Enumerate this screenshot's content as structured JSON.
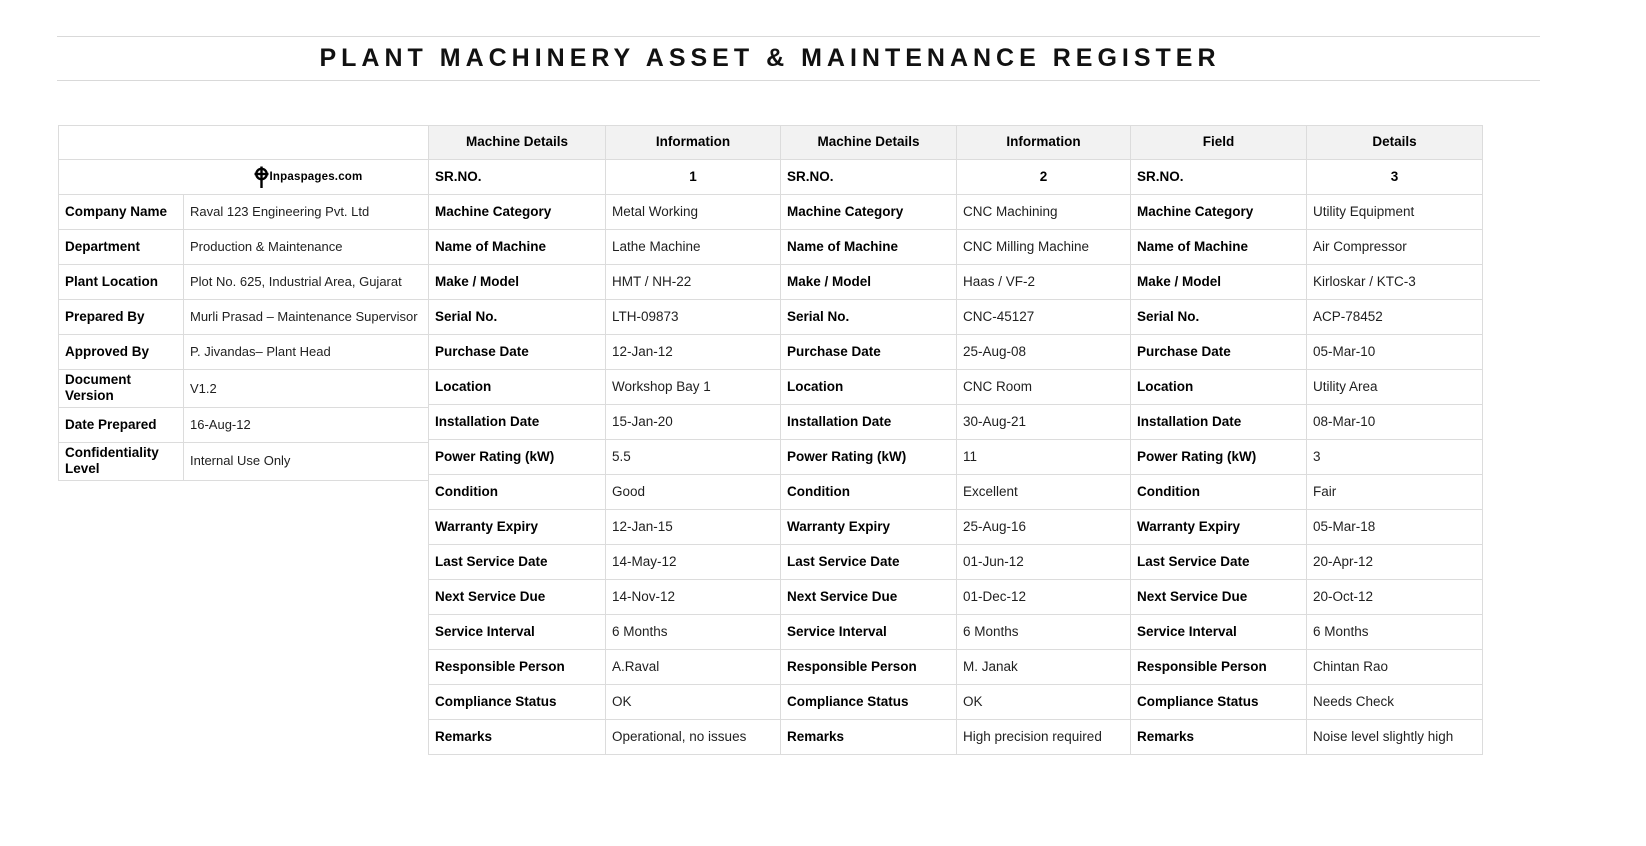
{
  "title": "PLANT MACHINERY ASSET & MAINTENANCE REGISTER",
  "logo": {
    "icon": "inpaspages-crosshair-icon",
    "text": "Inpaspages.com"
  },
  "colors": {
    "header_bg": "#f2f2f2",
    "grid_line": "#dcdcdc",
    "text": "#1f1f1f"
  },
  "meta": {
    "rows": [
      {
        "label": "Company Name",
        "value": "Raval 123 Engineering Pvt. Ltd"
      },
      {
        "label": "Department",
        "value": "Production & Maintenance"
      },
      {
        "label": "Plant Location",
        "value": "Plot No. 625, Industrial Area, Gujarat"
      },
      {
        "label": "Prepared By",
        "value": "Murli Prasad – Maintenance Supervisor"
      },
      {
        "label": "Approved By",
        "value": "P. Jivandas– Plant Head"
      },
      {
        "label": "Document Version",
        "value": "V1.2"
      },
      {
        "label": "Date Prepared",
        "value": "16-Aug-12"
      },
      {
        "label": "Confidentiality Level",
        "value": "Internal Use Only"
      }
    ]
  },
  "machines": [
    {
      "header": {
        "col1": "Machine Details",
        "col2": "Information"
      },
      "rows": [
        {
          "label": "SR.NO.",
          "value": "1"
        },
        {
          "label": "Machine Category",
          "value": "Metal Working"
        },
        {
          "label": "Name of Machine",
          "value": "Lathe Machine"
        },
        {
          "label": "Make / Model",
          "value": "HMT / NH-22"
        },
        {
          "label": "Serial No.",
          "value": "LTH-09873"
        },
        {
          "label": "Purchase Date",
          "value": "12-Jan-12"
        },
        {
          "label": "Location",
          "value": "Workshop Bay 1"
        },
        {
          "label": "Installation Date",
          "value": "15-Jan-20"
        },
        {
          "label": "Power Rating (kW)",
          "value": "5.5"
        },
        {
          "label": "Condition",
          "value": "Good"
        },
        {
          "label": "Warranty Expiry",
          "value": "12-Jan-15"
        },
        {
          "label": "Last Service Date",
          "value": "14-May-12"
        },
        {
          "label": "Next Service Due",
          "value": "14-Nov-12"
        },
        {
          "label": "Service Interval",
          "value": "6 Months"
        },
        {
          "label": "Responsible Person",
          "value": "A.Raval"
        },
        {
          "label": "Compliance Status",
          "value": "OK"
        },
        {
          "label": "Remarks",
          "value": "Operational, no issues"
        }
      ]
    },
    {
      "header": {
        "col1": "Machine Details",
        "col2": "Information"
      },
      "rows": [
        {
          "label": "SR.NO.",
          "value": "2"
        },
        {
          "label": "Machine Category",
          "value": "CNC Machining"
        },
        {
          "label": "Name of Machine",
          "value": "CNC Milling Machine"
        },
        {
          "label": "Make / Model",
          "value": "Haas / VF-2"
        },
        {
          "label": "Serial No.",
          "value": "CNC-45127"
        },
        {
          "label": "Purchase Date",
          "value": "25-Aug-08"
        },
        {
          "label": "Location",
          "value": "CNC Room"
        },
        {
          "label": "Installation Date",
          "value": "30-Aug-21"
        },
        {
          "label": "Power Rating (kW)",
          "value": "11"
        },
        {
          "label": "Condition",
          "value": "Excellent"
        },
        {
          "label": "Warranty Expiry",
          "value": "25-Aug-16"
        },
        {
          "label": "Last Service Date",
          "value": "01-Jun-12"
        },
        {
          "label": "Next Service Due",
          "value": "01-Dec-12"
        },
        {
          "label": "Service Interval",
          "value": "6 Months"
        },
        {
          "label": "Responsible Person",
          "value": "M. Janak"
        },
        {
          "label": "Compliance Status",
          "value": "OK"
        },
        {
          "label": "Remarks",
          "value": "High precision required"
        }
      ]
    },
    {
      "header": {
        "col1": "Field",
        "col2": "Details"
      },
      "rows": [
        {
          "label": "SR.NO.",
          "value": "3"
        },
        {
          "label": "Machine Category",
          "value": "Utility Equipment"
        },
        {
          "label": "Name of Machine",
          "value": "Air Compressor"
        },
        {
          "label": "Make / Model",
          "value": "Kirloskar / KTC-3"
        },
        {
          "label": "Serial No.",
          "value": "ACP-78452"
        },
        {
          "label": "Purchase Date",
          "value": "05-Mar-10"
        },
        {
          "label": "Location",
          "value": "Utility Area"
        },
        {
          "label": "Installation Date",
          "value": "08-Mar-10"
        },
        {
          "label": "Power Rating (kW)",
          "value": "3"
        },
        {
          "label": "Condition",
          "value": "Fair"
        },
        {
          "label": "Warranty Expiry",
          "value": "05-Mar-18"
        },
        {
          "label": "Last Service Date",
          "value": "20-Apr-12"
        },
        {
          "label": "Next Service Due",
          "value": "20-Oct-12"
        },
        {
          "label": "Service Interval",
          "value": "6 Months"
        },
        {
          "label": "Responsible Person",
          "value": "Chintan Rao"
        },
        {
          "label": "Compliance Status",
          "value": "Needs Check"
        },
        {
          "label": "Remarks",
          "value": "Noise level slightly high"
        }
      ]
    }
  ]
}
